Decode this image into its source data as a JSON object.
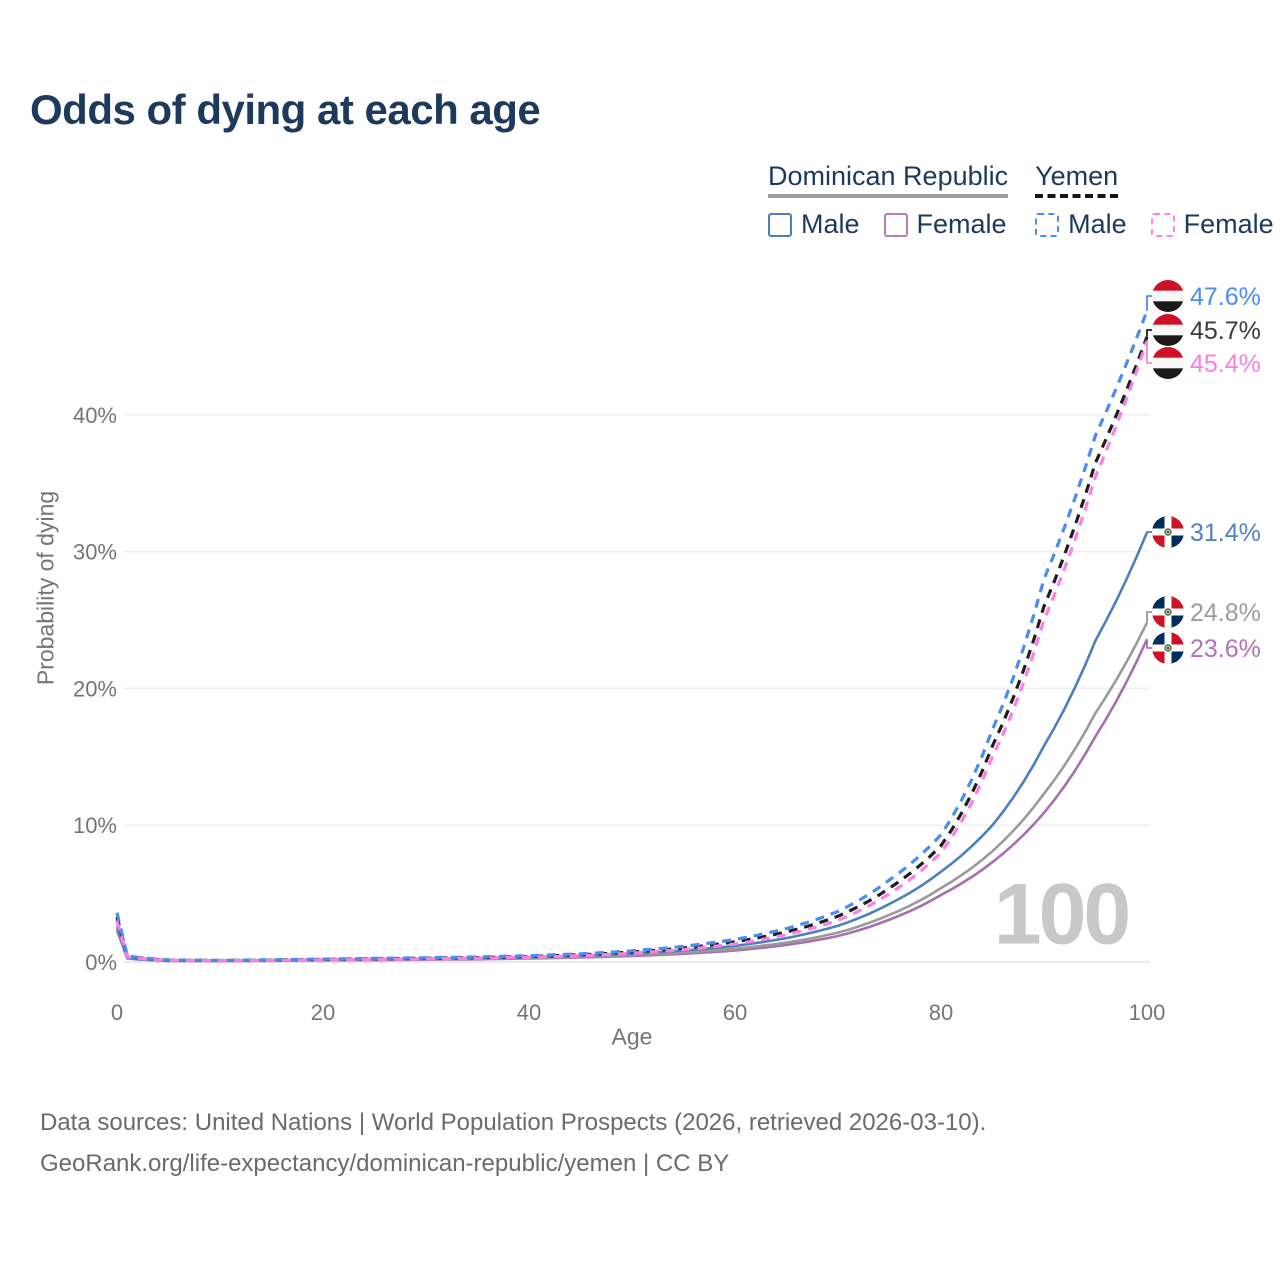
{
  "title": "Odds of dying at each age",
  "legend": {
    "position": "top-right",
    "groups": [
      {
        "id": "dominican-republic",
        "label": "Dominican Republic",
        "line_style": "solid",
        "line_color": "#9e9e9e",
        "items": [
          {
            "id": "dr-male",
            "label": "Male",
            "box_color": "#4d7fbf",
            "box_style": "solid"
          },
          {
            "id": "dr-female",
            "label": "Female",
            "box_color": "#b77cba",
            "box_style": "solid"
          }
        ]
      },
      {
        "id": "yemen",
        "label": "Yemen",
        "line_style": "dashed",
        "line_color": "#141414",
        "items": [
          {
            "id": "yemen-male",
            "label": "Male",
            "box_color": "#4a8df2",
            "box_style": "dashed"
          },
          {
            "id": "yemen-female",
            "label": "Female",
            "box_color": "#fb87e0",
            "box_style": "dashed"
          }
        ]
      }
    ]
  },
  "chart_data": {
    "type": "line",
    "title": "Odds of dying at each age",
    "xlabel": "Age",
    "ylabel": "Probability of dying",
    "xlim": [
      0,
      100
    ],
    "ylim": [
      0,
      48
    ],
    "grid": "horizontal",
    "x_ticks": [
      0,
      20,
      40,
      60,
      80,
      100
    ],
    "y_ticks": [
      0,
      10,
      20,
      30,
      40
    ],
    "y_tick_suffix": "%",
    "x": [
      0,
      1,
      5,
      10,
      15,
      20,
      25,
      30,
      35,
      40,
      45,
      50,
      55,
      60,
      65,
      70,
      75,
      80,
      85,
      90,
      95,
      100
    ],
    "series": [
      {
        "id": "dr-female",
        "name": "Dominican Republic Female",
        "country": "Dominican Republic",
        "sex": "female",
        "style": "solid",
        "color": "#a66fae",
        "label_color": "#b273b8",
        "end_label": "23.6%",
        "values": [
          2.3,
          0.26,
          0.08,
          0.07,
          0.09,
          0.12,
          0.14,
          0.17,
          0.2,
          0.26,
          0.33,
          0.44,
          0.6,
          0.84,
          1.25,
          1.9,
          3.1,
          4.9,
          7.3,
          10.9,
          16.5,
          23.6
        ]
      },
      {
        "id": "dr-both",
        "name": "Dominican Republic Both sexes",
        "country": "Dominican Republic",
        "sex": "both",
        "style": "solid",
        "color": "#9a9a9a",
        "label_color": "#9d9d9d",
        "end_label": "24.8%",
        "values": [
          2.45,
          0.28,
          0.09,
          0.08,
          0.11,
          0.15,
          0.17,
          0.2,
          0.24,
          0.3,
          0.38,
          0.51,
          0.69,
          0.97,
          1.42,
          2.15,
          3.45,
          5.4,
          8.1,
          12.3,
          18.2,
          24.8
        ]
      },
      {
        "id": "dr-male",
        "name": "Dominican Republic Male",
        "country": "Dominican Republic",
        "sex": "male",
        "style": "solid",
        "color": "#4d7fbf",
        "label_color": "#5283bd",
        "end_label": "31.4%",
        "values": [
          2.6,
          0.3,
          0.1,
          0.09,
          0.13,
          0.18,
          0.21,
          0.24,
          0.29,
          0.36,
          0.46,
          0.61,
          0.84,
          1.18,
          1.75,
          2.65,
          4.25,
          6.6,
          10.0,
          15.8,
          23.5,
          31.4
        ]
      },
      {
        "id": "yemen-both",
        "name": "Yemen Both sexes",
        "country": "Yemen",
        "sex": "both",
        "style": "dashed",
        "color": "#1f1f1f",
        "label_color": "#3b3b3b",
        "end_label": "45.7%",
        "values": [
          3.3,
          0.42,
          0.14,
          0.11,
          0.14,
          0.19,
          0.23,
          0.27,
          0.32,
          0.4,
          0.53,
          0.73,
          1.02,
          1.48,
          2.2,
          3.35,
          5.4,
          8.5,
          15.8,
          26.0,
          36.5,
          45.7
        ]
      },
      {
        "id": "yemen-male",
        "name": "Yemen Male",
        "country": "Yemen",
        "sex": "male",
        "style": "dashed",
        "color": "#4a8df2",
        "label_color": "#4a8df2",
        "end_label": "47.6%",
        "values": [
          3.6,
          0.45,
          0.15,
          0.12,
          0.16,
          0.22,
          0.26,
          0.31,
          0.37,
          0.46,
          0.6,
          0.82,
          1.15,
          1.65,
          2.45,
          3.7,
          6.0,
          9.3,
          17.0,
          28.0,
          38.5,
          47.6
        ]
      },
      {
        "id": "yemen-female",
        "name": "Yemen Female",
        "country": "Yemen",
        "sex": "female",
        "style": "dashed",
        "color": "#fb80e3",
        "label_color": "#fb80e3",
        "end_label": "45.4%",
        "values": [
          3.0,
          0.38,
          0.12,
          0.1,
          0.12,
          0.16,
          0.19,
          0.23,
          0.28,
          0.35,
          0.46,
          0.64,
          0.91,
          1.32,
          2.0,
          3.05,
          5.0,
          8.0,
          15.0,
          25.0,
          35.5,
          45.4
        ]
      }
    ],
    "flag_colors": {
      "yemen": {
        "red": "#ce1126",
        "white": "#f7f7f7",
        "black": "#1a1a1a"
      },
      "dominican_republic": {
        "blue": "#002d62",
        "red": "#ce1126",
        "cross": "#ffffff",
        "emblem_green": "#3f7d3a",
        "emblem_red": "#8d1b3d"
      }
    },
    "gridline_color": "#ededed",
    "axis_text_color": "#757575"
  },
  "watermark": "100",
  "footer": {
    "line1": "Data sources: United Nations | World Population Prospects (2026, retrieved 2026-03-10).",
    "line2": "GeoRank.org/life-expectancy/dominican-republic/yemen | CC BY"
  }
}
